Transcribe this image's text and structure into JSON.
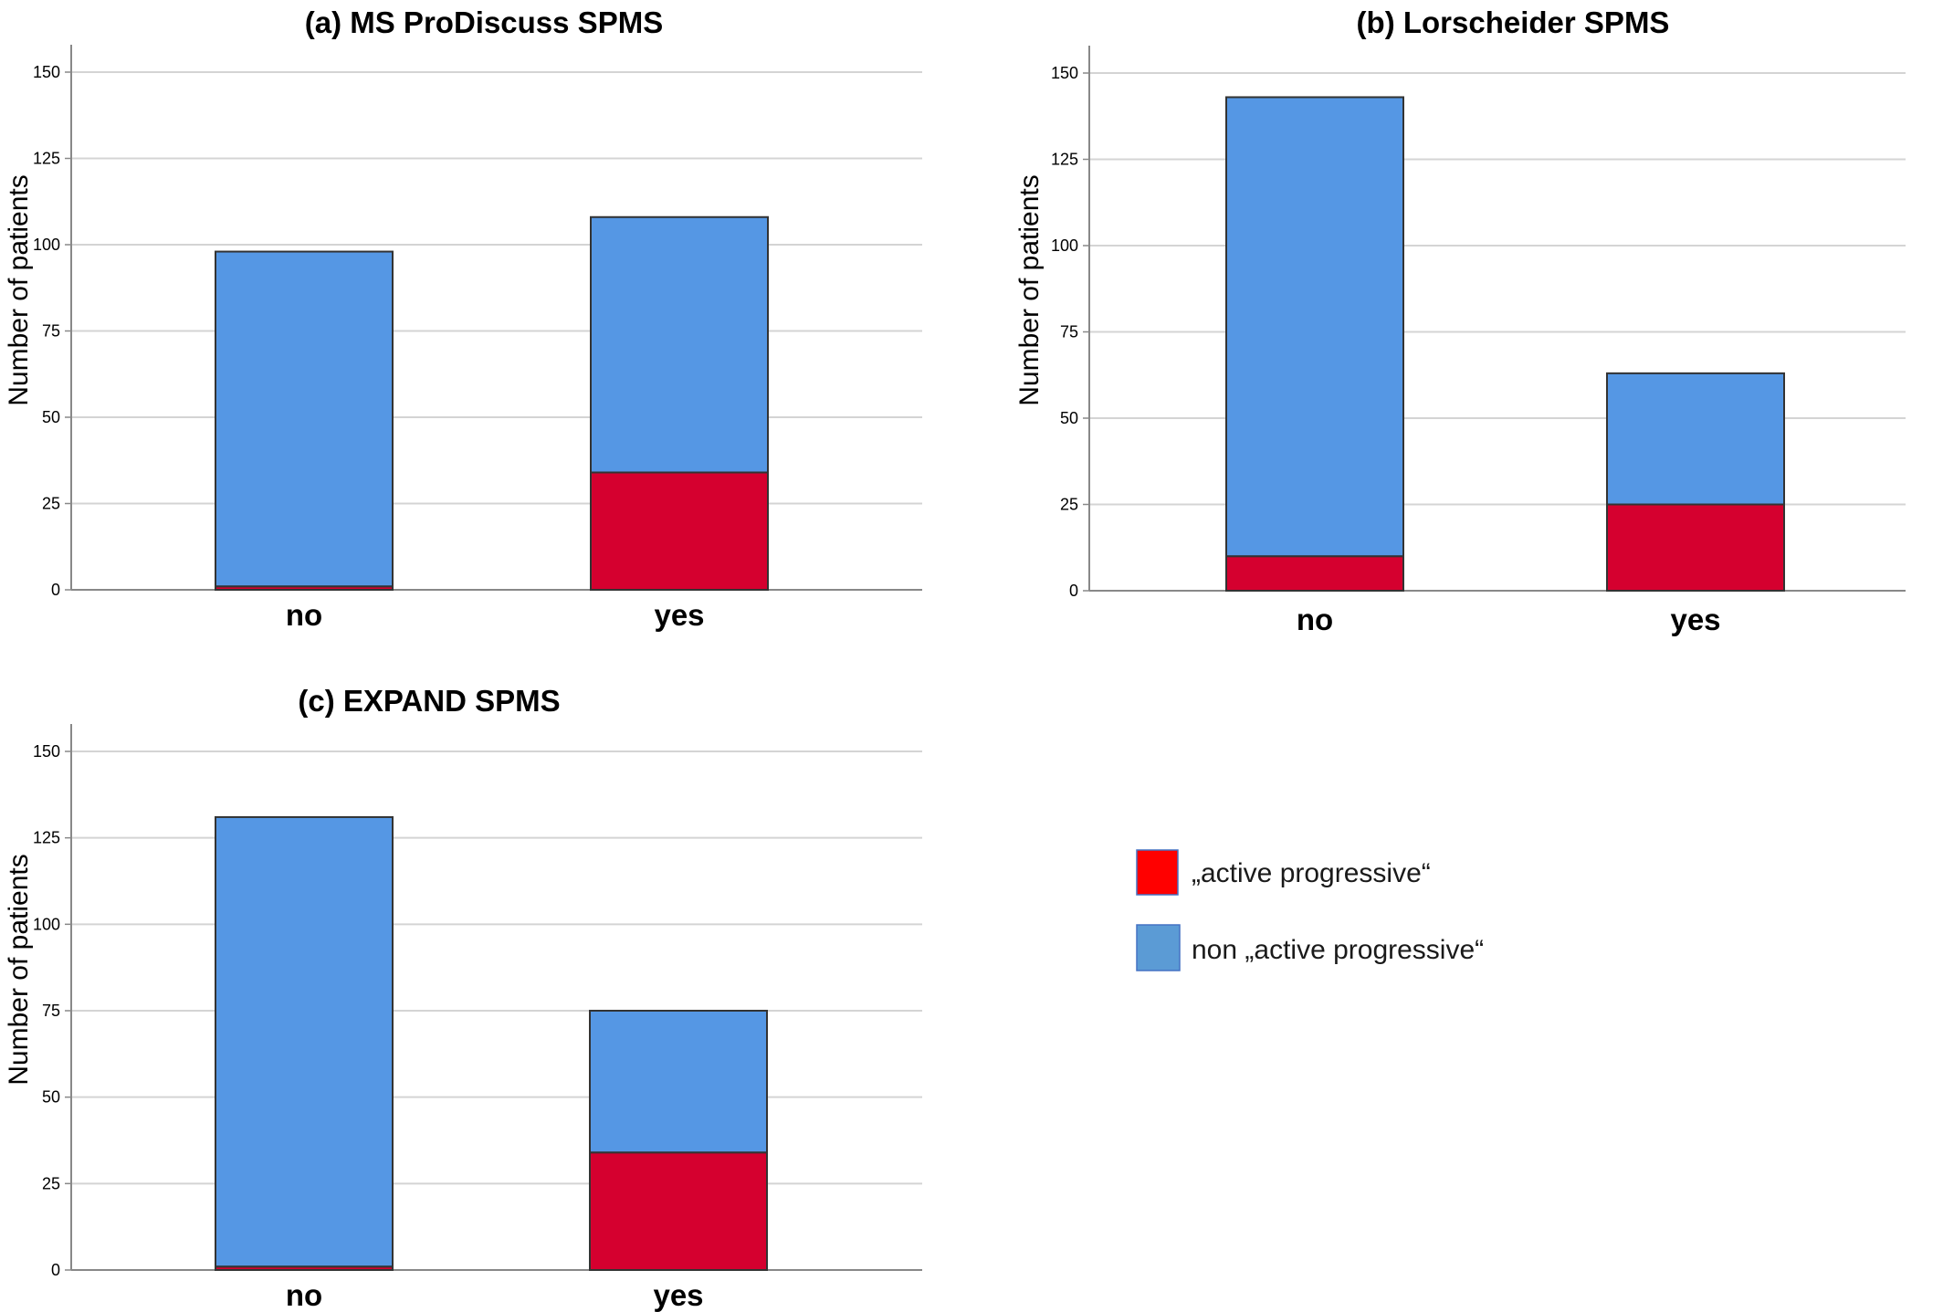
{
  "colors": {
    "active": "#D5002F",
    "non_active": "#5597E4",
    "bar_stroke": "#333333",
    "grid": "#D4D4D4",
    "axis": "#888888",
    "legend_active": "#FF0000",
    "legend_non_active": "#5B9BD5"
  },
  "legend": {
    "items": [
      {
        "label": "„active progressive“",
        "color_key": "legend_active"
      },
      {
        "label": "non „active progressive“",
        "color_key": "legend_non_active"
      }
    ]
  },
  "chart_data": [
    {
      "type": "bar",
      "stacked": true,
      "title": "(a) MS ProDiscuss SPMS",
      "xlabel": "",
      "ylabel": "Number of patients",
      "ylim": [
        0,
        150
      ],
      "yticks": [
        "0",
        "25",
        "50",
        "75",
        "100",
        "125",
        "150"
      ],
      "grid": true,
      "categories": [
        "no",
        "yes"
      ],
      "series": [
        {
          "name": "„active progressive“",
          "values": [
            1,
            34
          ]
        },
        {
          "name": "non „active progressive“",
          "values": [
            97,
            74
          ]
        }
      ]
    },
    {
      "type": "bar",
      "stacked": true,
      "title": "(b) Lorscheider SPMS",
      "xlabel": "",
      "ylabel": "Number of patients",
      "ylim": [
        0,
        150
      ],
      "yticks": [
        "0",
        "25",
        "50",
        "75",
        "100",
        "125",
        "150"
      ],
      "grid": true,
      "categories": [
        "no",
        "yes"
      ],
      "series": [
        {
          "name": "„active progressive“",
          "values": [
            10,
            25
          ]
        },
        {
          "name": "non „active progressive“",
          "values": [
            133,
            38
          ]
        }
      ]
    },
    {
      "type": "bar",
      "stacked": true,
      "title": "(c) EXPAND SPMS",
      "xlabel": "",
      "ylabel": "Number of patients",
      "ylim": [
        0,
        150
      ],
      "yticks": [
        "0",
        "25",
        "50",
        "75",
        "100",
        "125",
        "150"
      ],
      "grid": true,
      "categories": [
        "no",
        "yes"
      ],
      "series": [
        {
          "name": "„active progressive“",
          "values": [
            1,
            34
          ]
        },
        {
          "name": "non „active progressive“",
          "values": [
            130,
            41
          ]
        }
      ]
    }
  ]
}
